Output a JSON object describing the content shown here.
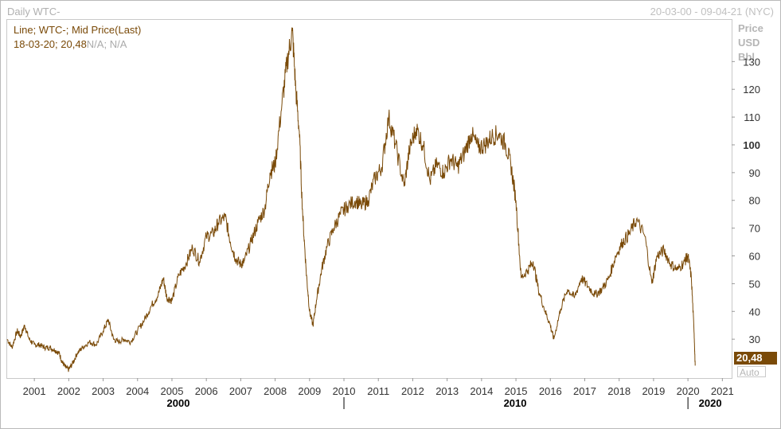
{
  "header": {
    "title": "Daily WTC-",
    "date_range": "20-03-00 - 09-04-21 (NYC)"
  },
  "legend": {
    "line1": "Line; WTC-; Mid Price(Last)",
    "line2_date_value": "18-03-20; 20,48",
    "line2_na": "N/A; N/A"
  },
  "y_unit_labels": [
    "Price",
    "USD",
    "Bbl"
  ],
  "last_price_label": "20,48",
  "auto_button_label": "Auto",
  "colors": {
    "series": "#7a4a08",
    "axis_text": "#333333"
  },
  "chart_data": {
    "type": "line",
    "title": "",
    "xlabel": "",
    "ylabel": "Price USD Bbl",
    "x_range": [
      2000.21,
      2021.27
    ],
    "ylim": [
      16,
      145
    ],
    "y_ticks": [
      30,
      40,
      50,
      60,
      70,
      80,
      90,
      100,
      110,
      120,
      130
    ],
    "y_tick_labels": [
      "30",
      "40",
      "50",
      "60",
      "70",
      "80",
      "90",
      "100",
      "110",
      "120",
      "130"
    ],
    "bold_y_tick": "100",
    "x_ticks": [
      2001,
      2002,
      2003,
      2004,
      2005,
      2006,
      2007,
      2008,
      2009,
      2010,
      2011,
      2012,
      2013,
      2014,
      2015,
      2016,
      2017,
      2018,
      2019,
      2020,
      2021
    ],
    "x_tick_labels": [
      "2001",
      "2002",
      "2003",
      "2004",
      "2005",
      "2006",
      "2007",
      "2008",
      "2009",
      "2010",
      "2011",
      "2012",
      "2013",
      "2014",
      "2015",
      "2016",
      "2017",
      "2018",
      "2019",
      "2020",
      "2021"
    ],
    "decade_labels": [
      {
        "at": 2000,
        "label": "2000"
      },
      {
        "at": 2010,
        "label": "2010"
      },
      {
        "at": 2020,
        "label": "2020"
      }
    ],
    "grid": false,
    "series": [
      {
        "name": "WTC- Mid Price(Last)",
        "x": [
          2000.21,
          2000.35,
          2000.5,
          2000.6,
          2000.72,
          2000.85,
          2001.0,
          2001.15,
          2001.3,
          2001.45,
          2001.6,
          2001.72,
          2001.8,
          2001.9,
          2002.0,
          2002.1,
          2002.25,
          2002.4,
          2002.6,
          2002.8,
          2003.0,
          2003.15,
          2003.3,
          2003.45,
          2003.6,
          2003.8,
          2004.0,
          2004.2,
          2004.4,
          2004.6,
          2004.75,
          2004.85,
          2005.0,
          2005.2,
          2005.4,
          2005.6,
          2005.8,
          2006.0,
          2006.2,
          2006.35,
          2006.55,
          2006.7,
          2006.85,
          2007.0,
          2007.1,
          2007.3,
          2007.5,
          2007.7,
          2007.85,
          2008.0,
          2008.2,
          2008.35,
          2008.5,
          2008.6,
          2008.7,
          2008.8,
          2008.9,
          2009.0,
          2009.1,
          2009.2,
          2009.35,
          2009.5,
          2009.7,
          2009.9,
          2010.1,
          2010.35,
          2010.5,
          2010.7,
          2010.9,
          2011.1,
          2011.3,
          2011.5,
          2011.75,
          2011.9,
          2012.1,
          2012.3,
          2012.5,
          2012.7,
          2012.9,
          2013.1,
          2013.3,
          2013.5,
          2013.7,
          2013.9,
          2014.1,
          2014.3,
          2014.5,
          2014.7,
          2014.85,
          2015.0,
          2015.15,
          2015.35,
          2015.5,
          2015.65,
          2015.85,
          2016.0,
          2016.1,
          2016.3,
          2016.5,
          2016.7,
          2016.9,
          2017.1,
          2017.3,
          2017.5,
          2017.7,
          2017.9,
          2018.1,
          2018.3,
          2018.5,
          2018.75,
          2018.95,
          2019.1,
          2019.3,
          2019.5,
          2019.7,
          2019.9,
          2020.0,
          2020.1,
          2020.18,
          2020.21
        ],
        "values": [
          30,
          27,
          33,
          31,
          35,
          30,
          28,
          28,
          27,
          27,
          26,
          25,
          22,
          20,
          19,
          21,
          25,
          27,
          29,
          28,
          33,
          37,
          30,
          29,
          30,
          29,
          33,
          37,
          42,
          46,
          52,
          45,
          44,
          53,
          57,
          63,
          58,
          67,
          68,
          72,
          74,
          65,
          59,
          57,
          58,
          65,
          72,
          77,
          90,
          93,
          115,
          130,
          141,
          120,
          105,
          75,
          55,
          40,
          35,
          44,
          55,
          63,
          70,
          75,
          78,
          80,
          78,
          80,
          88,
          92,
          110,
          100,
          85,
          98,
          106,
          100,
          87,
          93,
          90,
          95,
          92,
          97,
          104,
          99,
          100,
          103,
          104,
          100,
          93,
          80,
          52,
          55,
          58,
          48,
          40,
          35,
          30,
          41,
          48,
          45,
          52,
          49,
          46,
          48,
          52,
          60,
          65,
          68,
          73,
          67,
          50,
          60,
          62,
          57,
          55,
          58,
          60,
          52,
          32,
          20.48
        ]
      }
    ]
  }
}
